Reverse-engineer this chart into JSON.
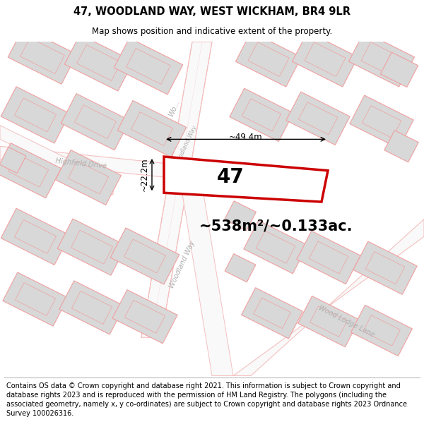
{
  "title_line1": "47, WOODLAND WAY, WEST WICKHAM, BR4 9LR",
  "title_line2": "Map shows position and indicative extent of the property.",
  "footer_text": "Contains OS data © Crown copyright and database right 2021. This information is subject to Crown copyright and database rights 2023 and is reproduced with the permission of HM Land Registry. The polygons (including the associated geometry, namely x, y co-ordinates) are subject to Crown copyright and database rights 2023 Ordnance Survey 100026316.",
  "area_text": "~538m²/~0.133ac.",
  "property_number": "47",
  "dim_width": "~49.4m",
  "dim_height": "~22.2m",
  "street_woodland_way": "Woodland Way",
  "street_highfield": "Highfield Drive",
  "street_woodlodge": "Wood Lodge Lane",
  "map_bg": "#ffffff",
  "road_color": "#f5c0c0",
  "block_fill": "#d8d8d8",
  "block_stroke": "#f0a0a0",
  "road_fill": "#f9f9f9",
  "highlight_stroke": "#cc0000",
  "highlight_fill": "#ffffff",
  "text_color": "#000000",
  "dim_color": "#000000",
  "street_color": "#b0b0b0",
  "title_fontsize": 10.5,
  "subtitle_fontsize": 8.5,
  "footer_fontsize": 7.0,
  "area_fontsize": 15,
  "number_fontsize": 20,
  "street_fontsize": 7,
  "dim_fontsize": 8.5
}
